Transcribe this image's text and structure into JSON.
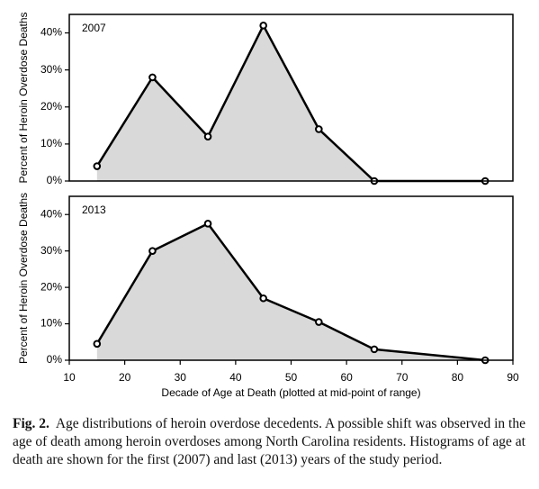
{
  "chart_data": [
    {
      "type": "line",
      "title": "2007",
      "ylabel": "Percent of Heroin Overdose Deaths",
      "x": [
        15,
        25,
        35,
        45,
        55,
        65,
        85
      ],
      "values": [
        4,
        28,
        12,
        42,
        14,
        0,
        0
      ],
      "xlim": [
        10,
        90
      ],
      "ylim": [
        0,
        45
      ],
      "yticks": [
        {
          "value": 0,
          "label": "0%"
        },
        {
          "value": 10,
          "label": "10%"
        },
        {
          "value": 20,
          "label": "20%"
        },
        {
          "value": 30,
          "label": "30%"
        },
        {
          "value": 40,
          "label": "40%"
        }
      ],
      "color": "#000000",
      "fill": "#d9d9d9"
    },
    {
      "type": "line",
      "title": "2013",
      "ylabel": "Percent of Heroin Overdose Deaths",
      "xlabel": "Decade of Age at Death (plotted at mid-point of range)",
      "x": [
        15,
        25,
        35,
        45,
        55,
        65,
        85
      ],
      "values": [
        4.5,
        30,
        37.5,
        17,
        10.5,
        3,
        0
      ],
      "xlim": [
        10,
        90
      ],
      "ylim": [
        0,
        45
      ],
      "xticks": [
        10,
        20,
        30,
        40,
        50,
        60,
        70,
        80,
        90
      ],
      "yticks": [
        {
          "value": 0,
          "label": "0%"
        },
        {
          "value": 10,
          "label": "10%"
        },
        {
          "value": 20,
          "label": "20%"
        },
        {
          "value": 30,
          "label": "30%"
        },
        {
          "value": 40,
          "label": "40%"
        }
      ],
      "color": "#000000",
      "fill": "#d9d9d9"
    }
  ],
  "caption": {
    "label": "Fig. 2.",
    "text": "Age distributions of heroin overdose decedents. A possible shift was observed in the age of death among heroin overdoses among North Carolina residents. Histograms of age at death are shown for the first (2007) and last (2013) years of the study period."
  }
}
